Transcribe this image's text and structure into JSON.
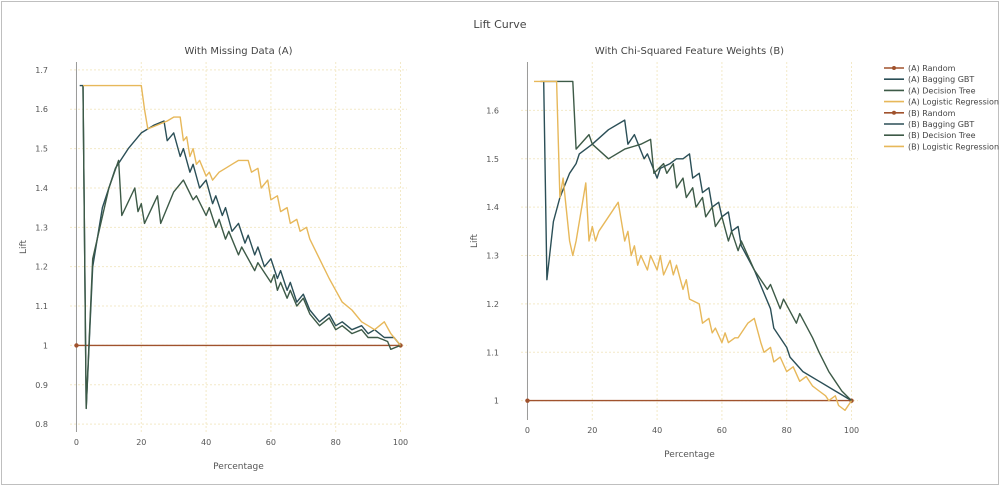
{
  "title": "Lift Curve",
  "colors": {
    "random": "#a0522d",
    "bagging": "#2b4f57",
    "tree": "#3d5a47",
    "logistic": "#e7b85a",
    "grid": "#f3e9c8",
    "axis": "#777777"
  },
  "legend": [
    {
      "label": "(A) Random",
      "color": "#a0522d",
      "marker": true
    },
    {
      "label": "(A) Bagging GBT",
      "color": "#2b4f57",
      "marker": false
    },
    {
      "label": "(A) Decision Tree",
      "color": "#3d5a47",
      "marker": false
    },
    {
      "label": "(A) Logistic Regression",
      "color": "#e7b85a",
      "marker": false
    },
    {
      "label": "(B) Random",
      "color": "#a0522d",
      "marker": true
    },
    {
      "label": "(B) Bagging GBT",
      "color": "#2b4f57",
      "marker": false
    },
    {
      "label": "(B) Decision Tree",
      "color": "#3d5a47",
      "marker": false
    },
    {
      "label": "(B) Logistic Regression",
      "color": "#e7b85a",
      "marker": false
    }
  ],
  "chart_data": [
    {
      "type": "line",
      "title": "With Missing Data (A)",
      "xlabel": "Percentage",
      "ylabel": "Lift",
      "xlim": [
        -2,
        102
      ],
      "ylim": [
        0.78,
        1.72
      ],
      "xticks": [
        0,
        20,
        40,
        60,
        80,
        100
      ],
      "yticks": [
        0.8,
        0.9,
        1,
        1.1,
        1.2,
        1.3,
        1.4,
        1.5,
        1.6,
        1.7
      ],
      "ytick_labels": [
        "0.8",
        "0.9",
        "1",
        "1.1",
        "1.2",
        "1.3",
        "1.4",
        "1.5",
        "1.6",
        "1.7"
      ],
      "grid": true,
      "series": [
        {
          "name": "(A) Random",
          "color": "#a0522d",
          "marker": true,
          "x": [
            0,
            100
          ],
          "y": [
            1.0,
            1.0
          ]
        },
        {
          "name": "(A) Bagging GBT",
          "color": "#2b4f57",
          "x": [
            1,
            2,
            3,
            5,
            8,
            12,
            16,
            20,
            24,
            27,
            28,
            30,
            32,
            33,
            35,
            36,
            38,
            40,
            42,
            43,
            45,
            46,
            48,
            50,
            52,
            53,
            55,
            56,
            58,
            60,
            62,
            63,
            65,
            66,
            68,
            70,
            72,
            75,
            78,
            80,
            82,
            85,
            88,
            90,
            92,
            95,
            98,
            100
          ],
          "y": [
            1.66,
            1.66,
            0.84,
            1.2,
            1.35,
            1.45,
            1.5,
            1.54,
            1.56,
            1.57,
            1.52,
            1.54,
            1.48,
            1.5,
            1.44,
            1.46,
            1.4,
            1.42,
            1.36,
            1.38,
            1.33,
            1.35,
            1.29,
            1.31,
            1.26,
            1.28,
            1.23,
            1.25,
            1.2,
            1.22,
            1.17,
            1.19,
            1.14,
            1.16,
            1.11,
            1.13,
            1.09,
            1.06,
            1.08,
            1.05,
            1.06,
            1.04,
            1.05,
            1.03,
            1.04,
            1.02,
            1.02,
            1.0
          ]
        },
        {
          "name": "(A) Decision Tree",
          "color": "#3d5a47",
          "x": [
            2,
            3,
            5,
            10,
            13,
            14,
            18,
            19,
            20,
            21,
            25,
            26,
            28,
            30,
            33,
            36,
            37,
            40,
            41,
            43,
            44,
            46,
            47,
            50,
            51,
            55,
            56,
            60,
            61,
            62,
            63,
            65,
            66,
            68,
            70,
            72,
            75,
            78,
            80,
            82,
            85,
            88,
            90,
            93,
            96,
            97,
            100
          ],
          "y": [
            1.66,
            0.84,
            1.22,
            1.4,
            1.47,
            1.33,
            1.4,
            1.34,
            1.36,
            1.31,
            1.38,
            1.31,
            1.35,
            1.39,
            1.42,
            1.37,
            1.38,
            1.33,
            1.35,
            1.3,
            1.32,
            1.27,
            1.29,
            1.23,
            1.25,
            1.19,
            1.21,
            1.16,
            1.18,
            1.14,
            1.16,
            1.12,
            1.14,
            1.1,
            1.12,
            1.08,
            1.05,
            1.07,
            1.04,
            1.05,
            1.03,
            1.04,
            1.02,
            1.02,
            1.01,
            0.99,
            1.0
          ]
        },
        {
          "name": "(A) Logistic Regression",
          "color": "#e7b85a",
          "x": [
            2,
            5,
            10,
            15,
            20,
            21,
            22,
            25,
            28,
            30,
            32,
            33,
            34,
            35,
            36,
            37,
            38,
            40,
            41,
            42,
            44,
            46,
            48,
            50,
            53,
            54,
            56,
            57,
            59,
            60,
            62,
            63,
            65,
            66,
            68,
            69,
            71,
            72,
            75,
            78,
            80,
            82,
            85,
            88,
            90,
            92,
            95,
            97,
            100
          ],
          "y": [
            1.66,
            1.66,
            1.66,
            1.66,
            1.66,
            1.6,
            1.55,
            1.56,
            1.57,
            1.58,
            1.58,
            1.52,
            1.53,
            1.48,
            1.5,
            1.46,
            1.47,
            1.43,
            1.44,
            1.42,
            1.44,
            1.45,
            1.46,
            1.47,
            1.47,
            1.44,
            1.45,
            1.4,
            1.42,
            1.37,
            1.38,
            1.34,
            1.35,
            1.31,
            1.32,
            1.29,
            1.3,
            1.27,
            1.22,
            1.17,
            1.14,
            1.11,
            1.09,
            1.06,
            1.05,
            1.04,
            1.06,
            1.03,
            1.0
          ]
        }
      ]
    },
    {
      "type": "line",
      "title": "With Chi-Squared Feature Weights (B)",
      "xlabel": "Percentage",
      "ylabel": "Lift",
      "xlim": [
        -2,
        102
      ],
      "ylim": [
        0.96,
        1.7
      ],
      "xticks": [
        0,
        20,
        40,
        60,
        80,
        100
      ],
      "yticks": [
        1,
        1.1,
        1.2,
        1.3,
        1.4,
        1.5,
        1.6
      ],
      "ytick_labels": [
        "1",
        "1.1",
        "1.2",
        "1.3",
        "1.4",
        "1.5",
        "1.6"
      ],
      "grid": true,
      "series": [
        {
          "name": "(B) Random",
          "color": "#a0522d",
          "marker": true,
          "x": [
            0,
            100
          ],
          "y": [
            1.0,
            1.0
          ]
        },
        {
          "name": "(B) Bagging GBT",
          "color": "#2b4f57",
          "x": [
            5,
            6,
            8,
            10,
            13,
            15,
            16,
            20,
            25,
            30,
            31,
            33,
            36,
            37,
            40,
            41,
            44,
            46,
            48,
            50,
            51,
            53,
            54,
            56,
            57,
            59,
            60,
            62,
            63,
            65,
            66,
            70,
            75,
            76,
            80,
            81,
            85,
            90,
            95,
            100
          ],
          "y": [
            1.66,
            1.25,
            1.37,
            1.42,
            1.47,
            1.49,
            1.51,
            1.53,
            1.56,
            1.58,
            1.53,
            1.55,
            1.5,
            1.51,
            1.46,
            1.48,
            1.49,
            1.5,
            1.5,
            1.51,
            1.46,
            1.47,
            1.43,
            1.44,
            1.4,
            1.41,
            1.38,
            1.39,
            1.35,
            1.36,
            1.32,
            1.27,
            1.19,
            1.15,
            1.11,
            1.09,
            1.06,
            1.04,
            1.02,
            1.0
          ]
        },
        {
          "name": "(B) Decision Tree",
          "color": "#3d5a47",
          "x": [
            4,
            5,
            10,
            14,
            15,
            19,
            20,
            25,
            30,
            35,
            38,
            39,
            42,
            43,
            45,
            46,
            48,
            49,
            51,
            52,
            54,
            55,
            57,
            58,
            60,
            62,
            63,
            65,
            66,
            70,
            74,
            75,
            78,
            79,
            83,
            84,
            88,
            90,
            93,
            95,
            97,
            100
          ],
          "y": [
            1.66,
            1.66,
            1.66,
            1.66,
            1.52,
            1.55,
            1.53,
            1.5,
            1.52,
            1.53,
            1.54,
            1.47,
            1.49,
            1.47,
            1.49,
            1.44,
            1.46,
            1.42,
            1.44,
            1.4,
            1.42,
            1.38,
            1.4,
            1.36,
            1.38,
            1.33,
            1.35,
            1.31,
            1.33,
            1.27,
            1.23,
            1.24,
            1.19,
            1.21,
            1.16,
            1.18,
            1.13,
            1.1,
            1.06,
            1.04,
            1.02,
            1.0
          ]
        },
        {
          "name": "(B) Logistic Regression",
          "color": "#e7b85a",
          "x": [
            2,
            5,
            9,
            10,
            11,
            13,
            14,
            15,
            18,
            19,
            20,
            21,
            22,
            25,
            28,
            30,
            31,
            32,
            33,
            34,
            35,
            37,
            38,
            40,
            41,
            42,
            44,
            45,
            46,
            48,
            49,
            50,
            53,
            54,
            56,
            57,
            58,
            60,
            61,
            62,
            64,
            65,
            68,
            70,
            72,
            73,
            75,
            76,
            78,
            80,
            82,
            84,
            86,
            88,
            90,
            92,
            93,
            95,
            96,
            98,
            100
          ],
          "y": [
            1.66,
            1.66,
            1.66,
            1.42,
            1.46,
            1.33,
            1.3,
            1.33,
            1.45,
            1.33,
            1.36,
            1.33,
            1.35,
            1.38,
            1.41,
            1.33,
            1.35,
            1.3,
            1.32,
            1.28,
            1.3,
            1.27,
            1.3,
            1.27,
            1.3,
            1.26,
            1.29,
            1.26,
            1.28,
            1.23,
            1.25,
            1.21,
            1.2,
            1.16,
            1.17,
            1.14,
            1.15,
            1.12,
            1.14,
            1.12,
            1.13,
            1.13,
            1.16,
            1.17,
            1.12,
            1.1,
            1.11,
            1.08,
            1.09,
            1.06,
            1.07,
            1.04,
            1.05,
            1.03,
            1.02,
            1.01,
            1.0,
            1.01,
            0.99,
            0.98,
            1.0
          ]
        }
      ]
    }
  ]
}
